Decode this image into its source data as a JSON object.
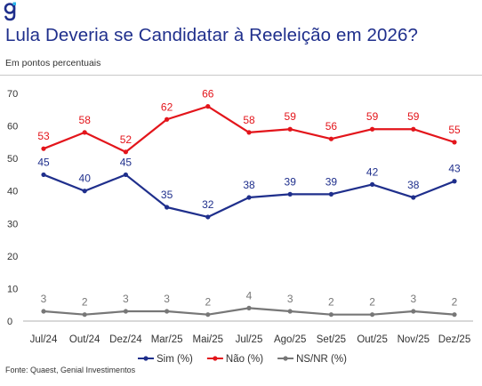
{
  "header": {
    "title": "Lula Deveria se Candidatar à Reeleição em 2026?",
    "subtitle": "Em pontos percentuais",
    "logo_icon": "genial-g-logo-icon"
  },
  "footer": {
    "source": "Fonte: Quaest, Genial Investimentos"
  },
  "colors": {
    "sim": "#1f2f8c",
    "nao": "#e3151b",
    "nsnr": "#777777",
    "axis": "#b0b0b0",
    "title": "#1f2f8c"
  },
  "chart_data": {
    "type": "line",
    "title": "Lula Deveria se Candidatar à Reeleição em 2026?",
    "subtitle": "Em pontos percentuais",
    "categories": [
      "Jul/24",
      "Out/24",
      "Dez/24",
      "Mar/25",
      "Mai/25",
      "Jul/25",
      "Ago/25",
      "Set/25",
      "Out/25",
      "Nov/25",
      "Dez/25"
    ],
    "ylim": [
      0,
      70
    ],
    "yticks": [
      0,
      10,
      20,
      30,
      40,
      50,
      60,
      70
    ],
    "grid": false,
    "legend": "bottom-center",
    "series": [
      {
        "name": "Sim (%)",
        "color": "#1f2f8c",
        "values": [
          45,
          40,
          45,
          35,
          32,
          38,
          39,
          39,
          42,
          38,
          43
        ]
      },
      {
        "name": "Não (%)",
        "color": "#e3151b",
        "values": [
          53,
          58,
          52,
          62,
          66,
          58,
          59,
          56,
          59,
          59,
          55
        ]
      },
      {
        "name": "NS/NR (%)",
        "color": "#777777",
        "values": [
          3,
          2,
          3,
          3,
          2,
          4,
          3,
          2,
          2,
          3,
          2
        ]
      }
    ]
  }
}
